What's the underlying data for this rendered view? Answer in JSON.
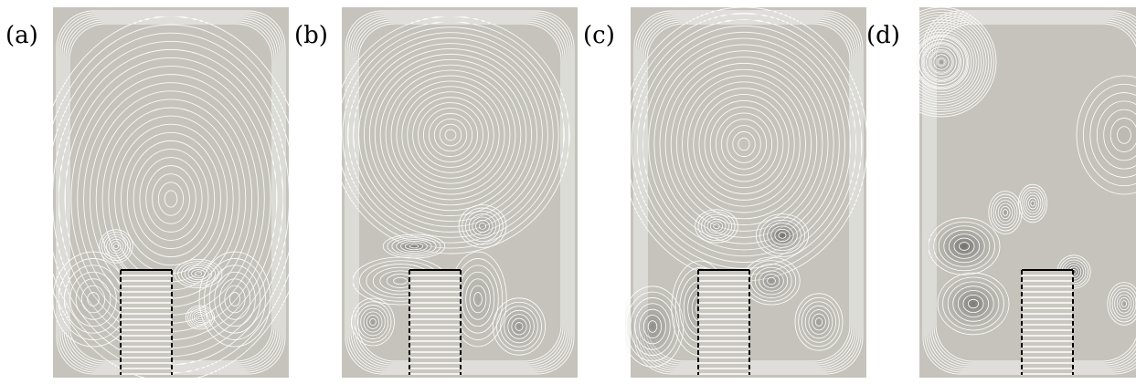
{
  "figure": {
    "panels": [
      {
        "label": "(a)"
      },
      {
        "label": "(b)"
      },
      {
        "label": "(c)"
      },
      {
        "label": "(d)"
      }
    ],
    "colors": {
      "field": "#c5c3bb",
      "streamline": "#ffffff",
      "vortex_core": "#4a4a4a",
      "obstacle_fill": "#c9c7bf",
      "obstacle_edge": "#000000"
    }
  }
}
